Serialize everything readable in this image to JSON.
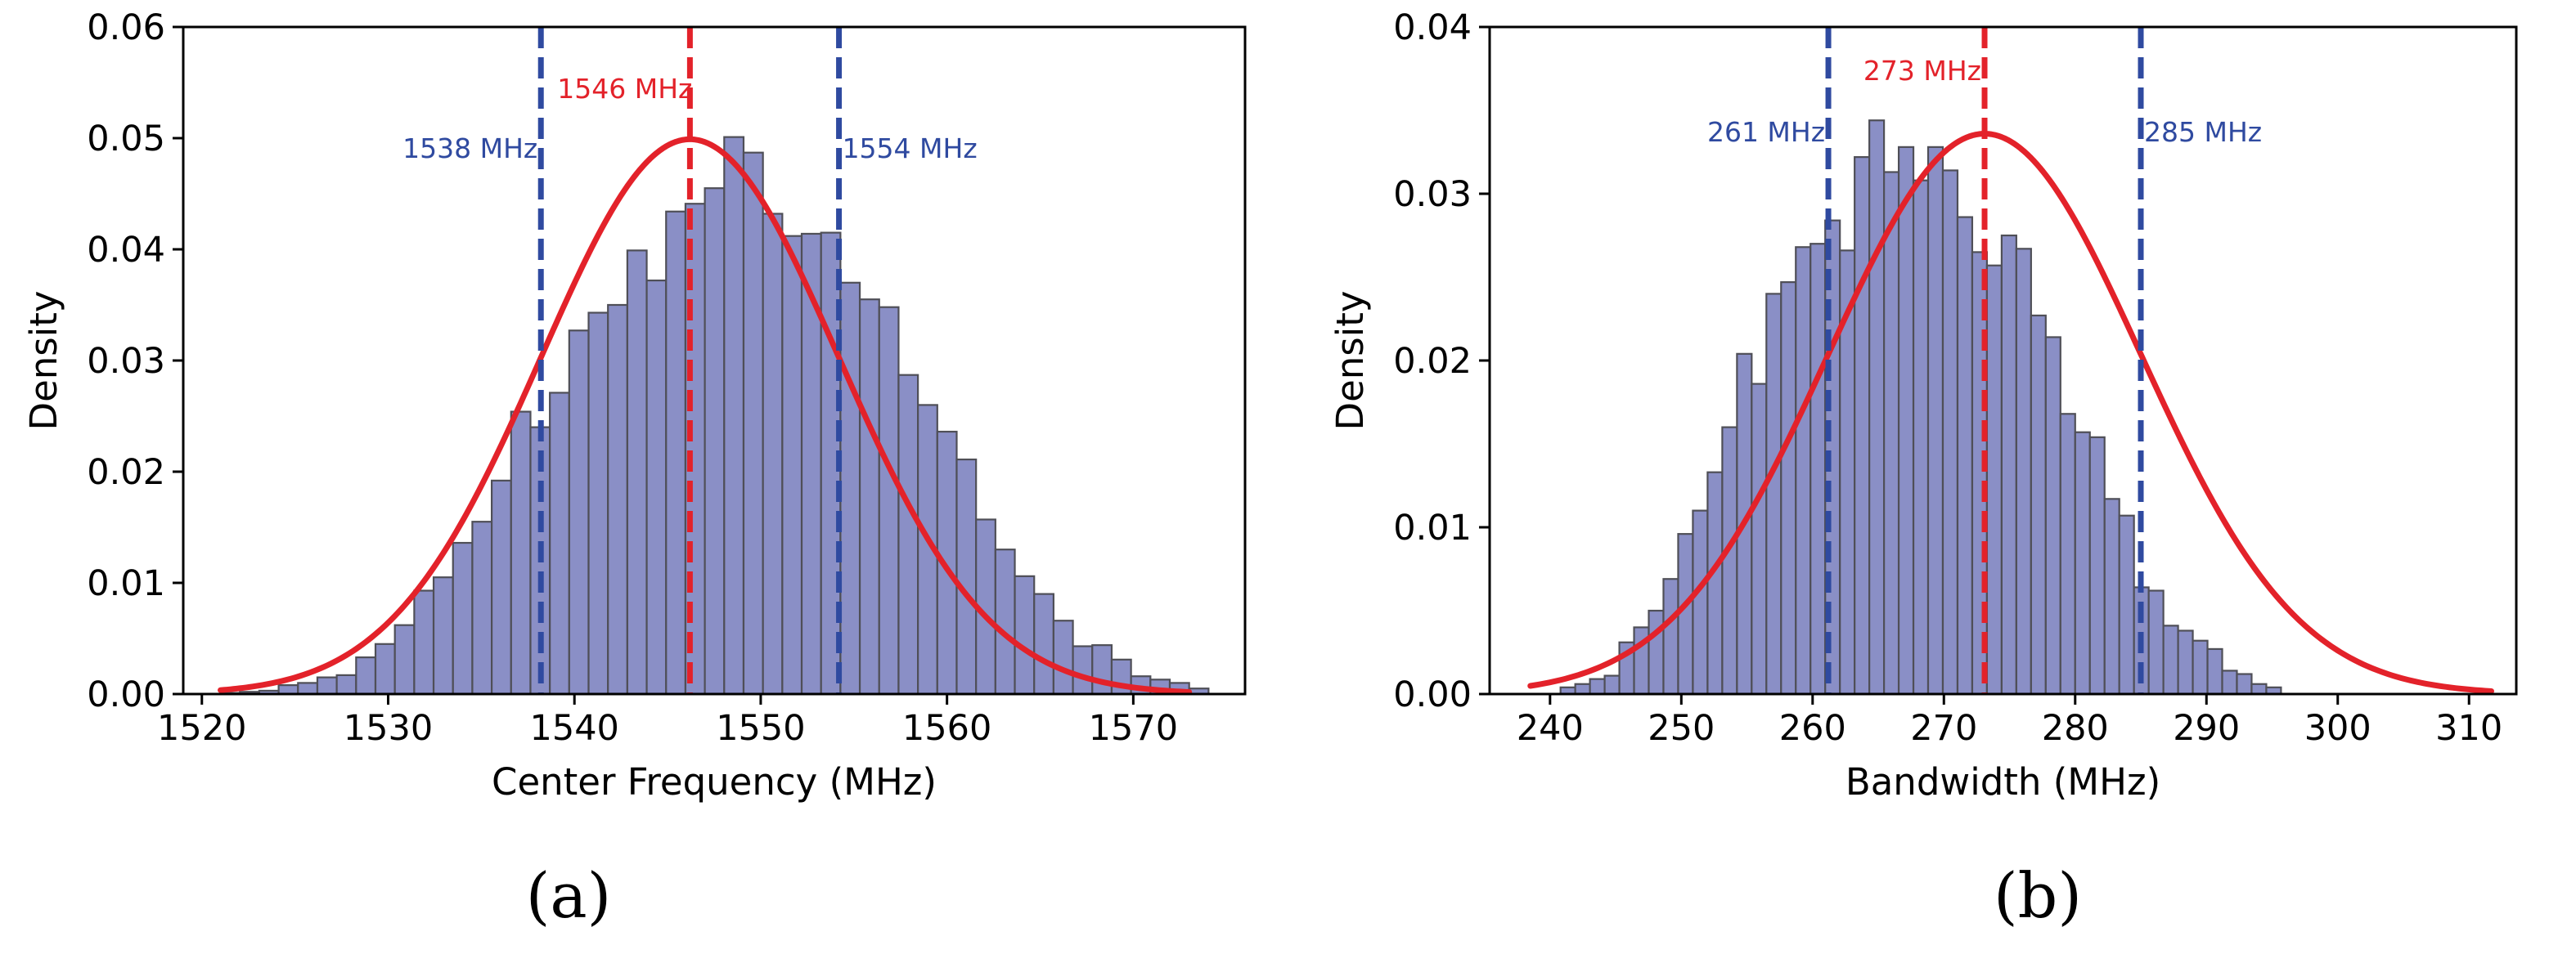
{
  "figure": {
    "captions": [
      "(a)",
      "(b)"
    ],
    "colors": {
      "bar_fill": "#8a8fc6",
      "bar_edge": "#4f4f57",
      "fit_line": "#e3222a",
      "mean_line": "#e3222a",
      "sigma_line": "#2f4aa0",
      "axis": "#000000"
    }
  },
  "chart_data": [
    {
      "type": "bar",
      "title": "",
      "xlabel": "Center Frequency (MHz)",
      "ylabel": "Density",
      "xlim": [
        1519,
        1576
      ],
      "ylim": [
        0,
        0.06
      ],
      "xticks": [
        1520,
        1530,
        1540,
        1550,
        1560,
        1570
      ],
      "yticks": [
        0.0,
        0.01,
        0.02,
        0.03,
        0.04,
        0.05,
        0.06
      ],
      "ytick_labels": [
        "0.00",
        "0.01",
        "0.02",
        "0.03",
        "0.04",
        "0.05",
        "0.06"
      ],
      "grid": false,
      "histogram": {
        "bin_start": 1521.0,
        "bin_width": 1.04,
        "densities": [
          0.0001,
          0.0002,
          0.0003,
          0.0008,
          0.001,
          0.0015,
          0.0017,
          0.0033,
          0.0045,
          0.0062,
          0.0093,
          0.0105,
          0.0136,
          0.0155,
          0.0192,
          0.0254,
          0.024,
          0.0271,
          0.0327,
          0.0343,
          0.035,
          0.0399,
          0.0372,
          0.0434,
          0.0441,
          0.0455,
          0.0501,
          0.0487,
          0.0432,
          0.0412,
          0.0414,
          0.0415,
          0.037,
          0.0355,
          0.0348,
          0.0287,
          0.026,
          0.0236,
          0.0211,
          0.0157,
          0.013,
          0.0106,
          0.009,
          0.0066,
          0.0043,
          0.0044,
          0.0031,
          0.0016,
          0.0013,
          0.001,
          0.0005
        ]
      },
      "fit": {
        "type": "normal",
        "mean": 1546.2,
        "std": 8.0,
        "peak": 0.0499,
        "x_range": [
          1521,
          1573
        ]
      },
      "vlines": [
        {
          "x": 1538.2,
          "role": "sigma",
          "label": "1538 MHz",
          "label_side": "left"
        },
        {
          "x": 1546.2,
          "role": "mean",
          "label": "1546 MHz",
          "label_side": "center"
        },
        {
          "x": 1554.2,
          "role": "sigma",
          "label": "1554 MHz",
          "label_side": "right"
        }
      ]
    },
    {
      "type": "bar",
      "title": "",
      "xlabel": "Bandwidth (MHz)",
      "ylabel": "Density",
      "xlim": [
        235.4,
        313.6
      ],
      "ylim": [
        0,
        0.04
      ],
      "xticks": [
        240,
        250,
        260,
        270,
        280,
        290,
        300,
        310
      ],
      "yticks": [
        0.0,
        0.01,
        0.02,
        0.03,
        0.04
      ],
      "ytick_labels": [
        "0.00",
        "0.01",
        "0.02",
        "0.03",
        "0.04"
      ],
      "grid": false,
      "histogram": {
        "bin_start": 240.8,
        "bin_width": 1.12,
        "densities": [
          0.0004,
          0.0006,
          0.0009,
          0.0011,
          0.0031,
          0.004,
          0.005,
          0.0069,
          0.0096,
          0.011,
          0.0133,
          0.016,
          0.0204,
          0.0186,
          0.024,
          0.0247,
          0.0268,
          0.027,
          0.0284,
          0.0266,
          0.0322,
          0.0344,
          0.0313,
          0.0328,
          0.0308,
          0.0328,
          0.0314,
          0.0286,
          0.0265,
          0.0257,
          0.0275,
          0.0267,
          0.0227,
          0.0214,
          0.0168,
          0.0157,
          0.0154,
          0.0117,
          0.0107,
          0.0064,
          0.0062,
          0.0041,
          0.0038,
          0.0032,
          0.0027,
          0.0014,
          0.0012,
          0.0006,
          0.0004
        ]
      },
      "fit": {
        "type": "normal",
        "mean": 273.1,
        "std": 11.9,
        "peak": 0.0336,
        "x_range": [
          238.5,
          311.7
        ]
      },
      "vlines": [
        {
          "x": 261.2,
          "role": "sigma",
          "label": "261 MHz",
          "label_side": "left"
        },
        {
          "x": 273.1,
          "role": "mean",
          "label": "273 MHz",
          "label_side": "center"
        },
        {
          "x": 285.0,
          "role": "sigma",
          "label": "285 MHz",
          "label_side": "right"
        }
      ]
    }
  ]
}
